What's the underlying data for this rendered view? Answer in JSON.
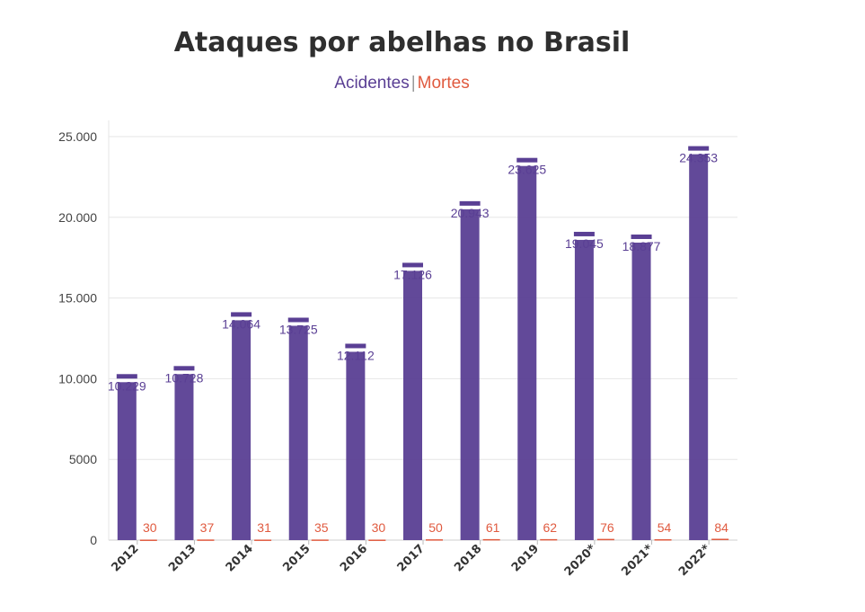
{
  "chart_data": {
    "type": "bar",
    "title": "Ataques por abelhas no Brasil",
    "legend": {
      "separator": "|",
      "placement": "top-center",
      "entries": [
        {
          "label": "Acidentes",
          "color": "#5a3f94"
        },
        {
          "label": "Mortes",
          "color": "#e05a3f"
        }
      ]
    },
    "categories": [
      "2012",
      "2013",
      "2014",
      "2015",
      "2016",
      "2017",
      "2018",
      "2019",
      "2020*",
      "2021*",
      "2022*"
    ],
    "series": [
      {
        "name": "Acidentes",
        "color": "#5a3f94",
        "values": [
          10229,
          10728,
          14064,
          13725,
          12112,
          17126,
          20943,
          23625,
          19045,
          18877,
          24353
        ],
        "labels": [
          "10.229",
          "10.728",
          "14.064",
          "13.725",
          "12.112",
          "17.126",
          "20.943",
          "23.625",
          "19.045",
          "18.877",
          "24.353"
        ]
      },
      {
        "name": "Mortes",
        "color": "#e05a3f",
        "values": [
          30,
          37,
          31,
          35,
          30,
          50,
          61,
          62,
          76,
          54,
          84
        ],
        "labels": [
          "30",
          "37",
          "31",
          "35",
          "30",
          "50",
          "61",
          "62",
          "76",
          "54",
          "84"
        ]
      }
    ],
    "ylim": [
      0,
      25000
    ],
    "yticks": [
      0,
      5000,
      10000,
      15000,
      20000,
      25000
    ],
    "ytick_labels": [
      "0",
      "5000",
      "10.000",
      "15.000",
      "20.000",
      "25.000"
    ],
    "grid": true,
    "xlabel": "",
    "ylabel": ""
  }
}
